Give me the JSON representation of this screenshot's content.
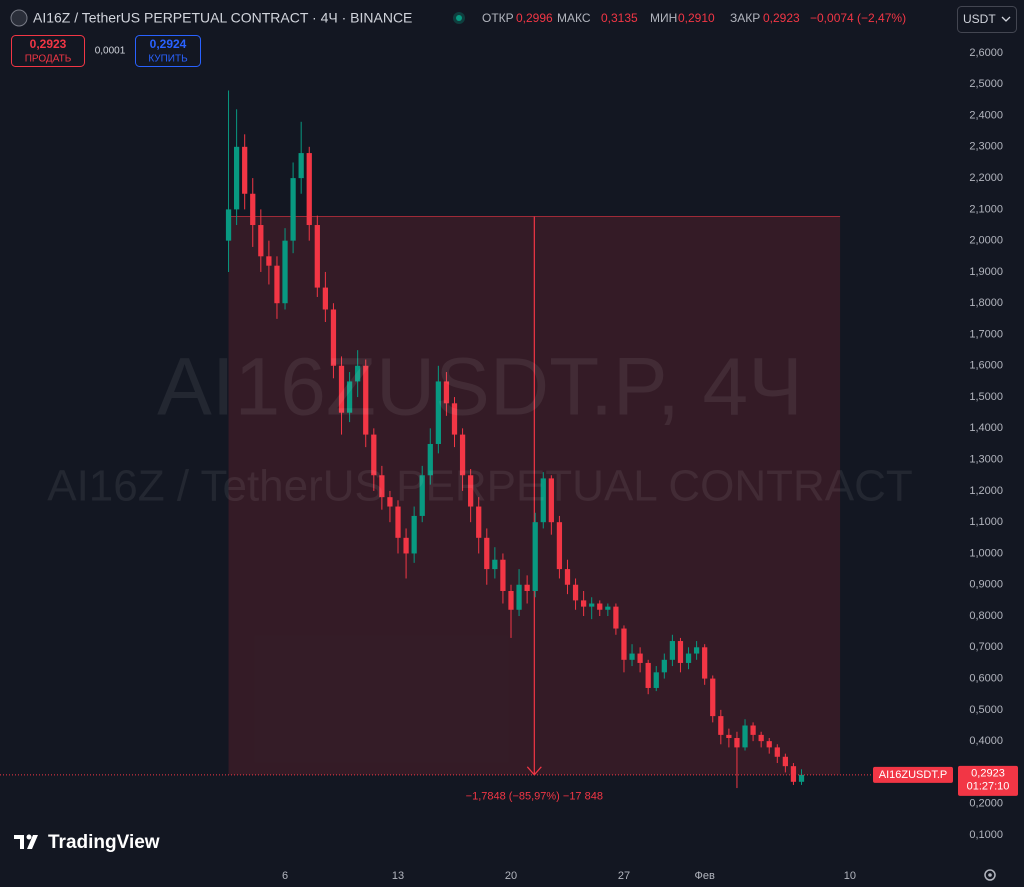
{
  "header": {
    "title": "AI16Z / TetherUS PERPETUAL CONTRACT · 4Ч · BINANCE",
    "open_label": "ОТКР",
    "open": "0,2996",
    "high_label": "МАКС",
    "high": "0,3135",
    "low_label": "МИН",
    "low": "0,2910",
    "close_label": "ЗАКР",
    "close": "0,2923",
    "change": "−0,0074 (−2,47%)",
    "currency": "USDT"
  },
  "trade": {
    "sell_price": "0,2923",
    "sell_label": "ПРОДАТЬ",
    "spread": "0,0001",
    "buy_price": "0,2924",
    "buy_label": "КУПИТЬ"
  },
  "watermark": {
    "line1": "AI16ZUSDT.P, 4Ч",
    "line2": "AI16Z / TetherUS PERPETUAL CONTRACT"
  },
  "branding": "TradingView",
  "chart_data": {
    "type": "candlestick",
    "x": [
      2.5,
      3,
      3.5,
      4,
      4.5,
      5,
      5.5,
      6,
      6.5,
      7,
      7.5,
      8,
      8.5,
      9,
      9.5,
      10,
      10.5,
      11,
      11.5,
      12,
      12.5,
      13,
      13.5,
      14,
      14.5,
      15,
      15.5,
      16,
      16.5,
      17,
      17.5,
      18,
      18.5,
      19,
      19.5,
      20,
      20.5,
      21,
      21.5,
      22,
      22.5,
      23,
      23.5,
      24,
      24.5,
      25,
      25.5,
      26,
      26.5,
      27,
      27.5,
      28,
      28.5,
      29,
      29.5,
      30,
      30.5,
      31,
      31.5,
      32,
      32.5,
      33,
      33.5,
      34,
      34.5,
      35,
      35.5,
      36,
      36.5,
      37,
      37.5,
      38
    ],
    "open": [
      2.0,
      2.1,
      2.3,
      2.15,
      2.05,
      1.95,
      1.92,
      1.8,
      2.0,
      2.2,
      2.28,
      2.05,
      1.85,
      1.78,
      1.6,
      1.45,
      1.55,
      1.6,
      1.38,
      1.25,
      1.18,
      1.15,
      1.05,
      1.0,
      1.12,
      1.25,
      1.35,
      1.55,
      1.48,
      1.38,
      1.25,
      1.15,
      1.05,
      0.95,
      0.98,
      0.88,
      0.82,
      0.9,
      0.88,
      1.1,
      1.24,
      1.1,
      0.95,
      0.9,
      0.85,
      0.83,
      0.84,
      0.82,
      0.83,
      0.76,
      0.66,
      0.68,
      0.65,
      0.57,
      0.62,
      0.66,
      0.72,
      0.65,
      0.68,
      0.7,
      0.6,
      0.48,
      0.42,
      0.41,
      0.38,
      0.45,
      0.42,
      0.4,
      0.38,
      0.35,
      0.32,
      0.27
    ],
    "high": [
      2.48,
      2.42,
      2.34,
      2.2,
      2.1,
      2.0,
      1.95,
      2.04,
      2.25,
      2.38,
      2.3,
      2.08,
      1.9,
      1.8,
      1.63,
      1.58,
      1.65,
      1.62,
      1.4,
      1.28,
      1.2,
      1.17,
      1.08,
      1.15,
      1.28,
      1.4,
      1.6,
      1.58,
      1.5,
      1.4,
      1.27,
      1.18,
      1.08,
      1.02,
      1.0,
      0.9,
      0.95,
      0.93,
      1.13,
      1.26,
      1.25,
      1.12,
      0.98,
      0.92,
      0.88,
      0.86,
      0.85,
      0.84,
      0.84,
      0.77,
      0.71,
      0.7,
      0.66,
      0.64,
      0.68,
      0.74,
      0.73,
      0.7,
      0.72,
      0.71,
      0.61,
      0.5,
      0.44,
      0.43,
      0.47,
      0.46,
      0.43,
      0.41,
      0.39,
      0.36,
      0.33,
      0.31
    ],
    "low": [
      1.9,
      2.05,
      2.1,
      1.98,
      1.9,
      1.86,
      1.75,
      1.78,
      1.96,
      2.15,
      2.0,
      1.82,
      1.74,
      1.56,
      1.38,
      1.42,
      1.5,
      1.34,
      1.2,
      1.14,
      1.1,
      1.0,
      0.92,
      0.97,
      1.1,
      1.22,
      1.32,
      1.44,
      1.34,
      1.2,
      1.1,
      1.0,
      0.9,
      0.92,
      0.84,
      0.73,
      0.8,
      0.84,
      0.86,
      1.08,
      1.06,
      0.92,
      0.87,
      0.82,
      0.8,
      0.79,
      0.8,
      0.8,
      0.74,
      0.62,
      0.64,
      0.62,
      0.55,
      0.56,
      0.6,
      0.64,
      0.62,
      0.63,
      0.66,
      0.58,
      0.46,
      0.39,
      0.38,
      0.25,
      0.37,
      0.4,
      0.38,
      0.36,
      0.33,
      0.3,
      0.26,
      0.26
    ],
    "close": [
      2.1,
      2.3,
      2.15,
      2.05,
      1.95,
      1.92,
      1.8,
      2.0,
      2.2,
      2.28,
      2.05,
      1.85,
      1.78,
      1.6,
      1.45,
      1.55,
      1.6,
      1.38,
      1.25,
      1.18,
      1.15,
      1.05,
      1.0,
      1.12,
      1.25,
      1.35,
      1.55,
      1.48,
      1.38,
      1.25,
      1.15,
      1.05,
      0.95,
      0.98,
      0.88,
      0.82,
      0.9,
      0.88,
      1.1,
      1.24,
      1.1,
      0.95,
      0.9,
      0.85,
      0.83,
      0.84,
      0.82,
      0.83,
      0.76,
      0.66,
      0.68,
      0.65,
      0.57,
      0.62,
      0.66,
      0.72,
      0.65,
      0.68,
      0.7,
      0.6,
      0.48,
      0.42,
      0.41,
      0.38,
      0.45,
      0.42,
      0.4,
      0.38,
      0.35,
      0.32,
      0.27,
      0.2923
    ],
    "up_color": "#089981",
    "down_color": "#f23645",
    "xlim": [
      -11.66,
      47.2
    ],
    "xticks": [
      6,
      13,
      20,
      27,
      {
        "value": 32,
        "label": "Фев"
      },
      {
        "value": 41,
        "label": "10"
      }
    ],
    "ylim": [
      0.02,
      2.7694
    ],
    "yticks": [
      {
        "value": 0.1,
        "label": "0,1000"
      },
      {
        "value": 0.2,
        "label": "0,2000"
      },
      {
        "value": 0.3,
        "label": "0,3000"
      },
      {
        "value": 0.4,
        "label": "0,4000"
      },
      {
        "value": 0.5,
        "label": "0,5000"
      },
      {
        "value": 0.6,
        "label": "0,6000"
      },
      {
        "value": 0.7,
        "label": "0,7000"
      },
      {
        "value": 0.8,
        "label": "0,8000"
      },
      {
        "value": 0.9,
        "label": "0,9000"
      },
      {
        "value": 1.0,
        "label": "1,0000"
      },
      {
        "value": 1.1,
        "label": "1,1000"
      },
      {
        "value": 1.2,
        "label": "1,2000"
      },
      {
        "value": 1.3,
        "label": "1,3000"
      },
      {
        "value": 1.4,
        "label": "1,4000"
      },
      {
        "value": 1.5,
        "label": "1,5000"
      },
      {
        "value": 1.6,
        "label": "1,6000"
      },
      {
        "value": 1.7,
        "label": "1,7000"
      },
      {
        "value": 1.8,
        "label": "1,8000"
      },
      {
        "value": 1.9,
        "label": "1,9000"
      },
      {
        "value": 2.0,
        "label": "2,0000"
      },
      {
        "value": 2.1,
        "label": "2,1000"
      },
      {
        "value": 2.2,
        "label": "2,2000"
      },
      {
        "value": 2.3,
        "label": "2,3000"
      },
      {
        "value": 2.4,
        "label": "2,4000"
      },
      {
        "value": 2.5,
        "label": "2,5000"
      },
      {
        "value": 2.6,
        "label": "2,6000"
      }
    ],
    "grid": false,
    "last_price": {
      "value": 0.2923,
      "label": "0,2923"
    },
    "symbol": "AI16ZUSDT.P",
    "countdown": "01:27:10",
    "measure": {
      "from_x": 2.5,
      "to_x": 40.39,
      "from_price": 2.0771,
      "to_price": 0.2923,
      "color": "#f23645",
      "label": "−1,7848 (−85,97%) −17 848"
    }
  }
}
